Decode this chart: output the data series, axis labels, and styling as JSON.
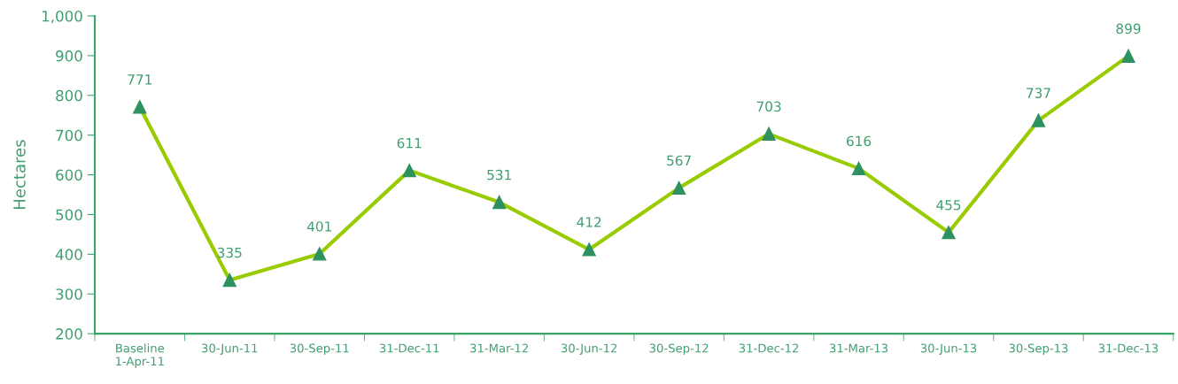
{
  "chart_data": {
    "type": "line",
    "ylabel": "Hectares",
    "categories": [
      "Baseline\n1-Apr-11",
      "30-Jun-11",
      "30-Sep-11",
      "31-Dec-11",
      "31-Mar-12",
      "30-Jun-12",
      "30-Sep-12",
      "31-Dec-12",
      "31-Mar-13",
      "30-Jun-13",
      "30-Sep-13",
      "31-Dec-13"
    ],
    "series": [
      {
        "color": "#99cc00",
        "values": [
          771,
          335,
          401,
          611,
          531,
          412,
          567,
          703,
          616,
          455,
          737,
          899
        ]
      }
    ],
    "ylim": [
      200,
      1000
    ],
    "yticks": [
      200,
      300,
      400,
      500,
      600,
      700,
      800,
      900,
      {
        "value": 1000,
        "label": "1,000"
      }
    ],
    "marker": "triangle",
    "line_style": "solid",
    "data_labels": true
  }
}
